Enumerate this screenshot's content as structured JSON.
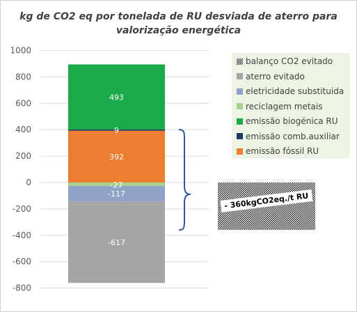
{
  "chart_data": {
    "type": "bar",
    "stacked": true,
    "title_line1": "kg de CO2 eq por tonelada de RU desviada de aterro para",
    "title_line2": "valorização energética",
    "ylim": [
      -800,
      1000
    ],
    "yticks": [
      "1000",
      "800",
      "600",
      "400",
      "200",
      "0",
      "-200",
      "-400",
      "-600",
      "-800"
    ],
    "grid": true,
    "legend_position": "right",
    "series": [
      {
        "name": "balanço CO2 evitado",
        "value": -360,
        "color": "#9a9a9a",
        "pattern": "checker"
      },
      {
        "name": "aterro evitado",
        "value": -617,
        "label": "-617",
        "color": "#a5a5a5"
      },
      {
        "name": "eletricidade substituída",
        "value": -117,
        "label": "-117",
        "color": "#8fa3c7"
      },
      {
        "name": "reciclagem metais",
        "value": -27,
        "label": "-27",
        "color": "#a9d18e"
      },
      {
        "name": "emissão biogénica RU",
        "value": 493,
        "label": "493",
        "color": "#1aaa4a"
      },
      {
        "name": "emissão comb.auxiliar",
        "value": 9,
        "label": "9",
        "color": "#1f3864"
      },
      {
        "name": "emissão fóssil RU",
        "value": 392,
        "label": "392",
        "color": "#ed7d31"
      }
    ],
    "legend_labels": [
      "balanço CO2 evitado",
      "aterro evitado",
      "eletricidade substituida",
      "reciclagem metais",
      "emissão biogénica RU",
      "emissão comb.auxiliar",
      "emissão fóssil RU"
    ],
    "annotation": "- 360kgCO2eq./t RU"
  }
}
